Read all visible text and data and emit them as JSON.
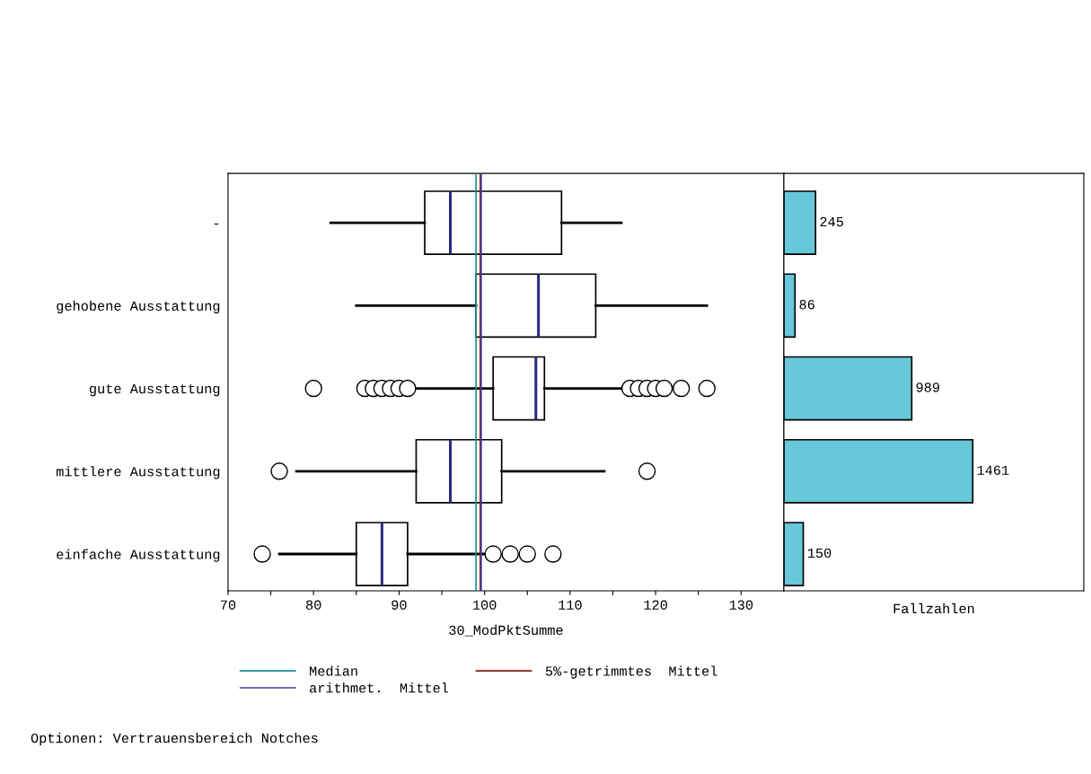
{
  "chart_data": [
    {
      "type": "box",
      "xlabel": "30_ModPktSumme",
      "orientation": "horizontal",
      "categories": [
        "-",
        "gehobene Ausstattung",
        "gute Ausstattung",
        "mittlere Ausstattung",
        "einfache Ausstattung"
      ],
      "boxes": [
        {
          "low": 82,
          "q1": 93,
          "median": 96,
          "q3": 109,
          "high": 116
        },
        {
          "low": 85,
          "q1": 99,
          "median": 106.3,
          "q3": 113,
          "high": 126
        },
        {
          "low": 92,
          "q1": 101,
          "median": 106,
          "q3": 107,
          "high": 116,
          "outliers": [
            80,
            86,
            87,
            88,
            89,
            90,
            91,
            117,
            118,
            119,
            120,
            121,
            123,
            126
          ]
        },
        {
          "low": 78,
          "q1": 92,
          "median": 96,
          "q3": 102,
          "high": 114,
          "outliers": [
            76,
            119
          ]
        },
        {
          "low": 76,
          "q1": 85,
          "median": 88,
          "q3": 91,
          "high": 100,
          "outliers": [
            74,
            101,
            103,
            105,
            108
          ]
        }
      ],
      "xlim": [
        70,
        135
      ],
      "xticks": [
        70,
        {
          "value": 75,
          "label": null
        },
        80,
        {
          "value": 85,
          "label": null
        },
        90,
        {
          "value": 95,
          "label": null
        },
        100,
        {
          "value": 105,
          "label": null
        },
        110,
        {
          "value": 115,
          "label": null
        },
        120,
        {
          "value": 125,
          "label": null
        },
        130
      ],
      "ref_lines": [
        {
          "axis": "x",
          "value": 99.0,
          "label": "Median",
          "color": "#1a9090"
        },
        {
          "axis": "x",
          "value": 99.5,
          "label": "5%-getrimmtes  Mittel",
          "color": "#8b1a1a"
        },
        {
          "axis": "x",
          "value": 99.6,
          "label": "arithmet.  Mittel",
          "color": "#3a3aaa"
        }
      ],
      "legend": "bottom",
      "grid": false,
      "annotations": [
        "Optionen: Vertrauensbereich Notches"
      ]
    },
    {
      "type": "bar",
      "orientation": "horizontal",
      "xlabel": "Fallzahlen",
      "categories": [
        null,
        null,
        null,
        null,
        null
      ],
      "values": [
        245,
        86,
        989,
        1461,
        150
      ],
      "color": "#66c8d8",
      "xlim": [
        0,
        2320
      ],
      "data_labels": true,
      "grid": false
    }
  ]
}
